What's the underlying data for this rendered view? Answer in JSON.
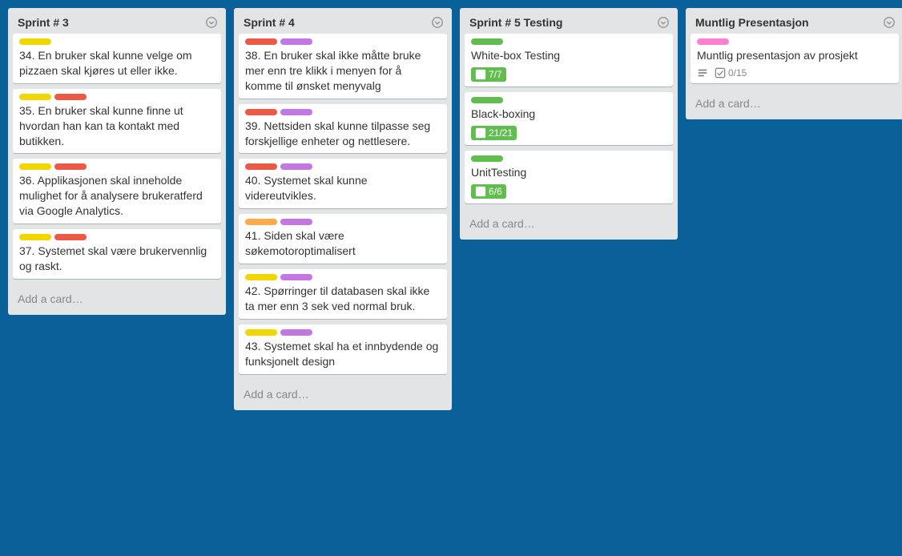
{
  "colors": {
    "yellow": "#f2d600",
    "red": "#eb5a46",
    "purple": "#c377e0",
    "orange": "#ffab4a",
    "green": "#61bd4f",
    "pink": "#ff80ce",
    "badge_green": "#61bd4f"
  },
  "add_card_label": "Add a card…",
  "lists": [
    {
      "title": "Sprint # 3",
      "cards": [
        {
          "labels": [
            "yellow"
          ],
          "text": "34. En bruker skal kunne velge om pizzaen skal kjøres ut eller ikke."
        },
        {
          "labels": [
            "yellow",
            "red"
          ],
          "text": "35. En bruker skal kunne finne ut hvordan han kan ta kontakt med butikken."
        },
        {
          "labels": [
            "yellow",
            "red"
          ],
          "text": "36. Applikasjonen skal inneholde mulighet for å analysere brukeratferd via Google Analytics."
        },
        {
          "labels": [
            "yellow",
            "red"
          ],
          "text": "37. Systemet skal være brukervennlig og raskt."
        }
      ]
    },
    {
      "title": "Sprint # 4",
      "cards": [
        {
          "labels": [
            "red",
            "purple"
          ],
          "text": "38. En bruker skal ikke måtte bruke mer enn tre klikk i menyen for  å komme til ønsket menyvalg"
        },
        {
          "labels": [
            "red",
            "purple"
          ],
          "text": "39. Nettsiden skal kunne tilpasse seg forskjellige enheter og nettlesere."
        },
        {
          "labels": [
            "red",
            "purple"
          ],
          "text": "40. Systemet skal kunne videreutvikles."
        },
        {
          "labels": [
            "orange",
            "purple"
          ],
          "text": "41. Siden skal være søkemotoroptimalisert"
        },
        {
          "labels": [
            "yellow",
            "purple"
          ],
          "text": "42. Spørringer til databasen skal ikke ta mer enn 3 sek ved normal bruk."
        },
        {
          "labels": [
            "yellow",
            "purple"
          ],
          "text": "43. Systemet skal ha et innbydende og funksjonelt design"
        }
      ]
    },
    {
      "title": "Sprint # 5 Testing",
      "cards": [
        {
          "labels": [
            "green"
          ],
          "text": "White-box Testing",
          "checklist": "7/7",
          "checklist_complete": true
        },
        {
          "labels": [
            "green"
          ],
          "text": "Black-boxing",
          "checklist": "21/21",
          "checklist_complete": true
        },
        {
          "labels": [
            "green"
          ],
          "text": "UnitTesting",
          "checklist": "6/6",
          "checklist_complete": true
        }
      ]
    },
    {
      "title": "Muntlig Presentasjon",
      "cards": [
        {
          "labels": [
            "pink"
          ],
          "text": "Muntlig presentasjon av prosjekt",
          "has_description": true,
          "checklist": "0/15",
          "checklist_complete": false
        }
      ]
    }
  ]
}
